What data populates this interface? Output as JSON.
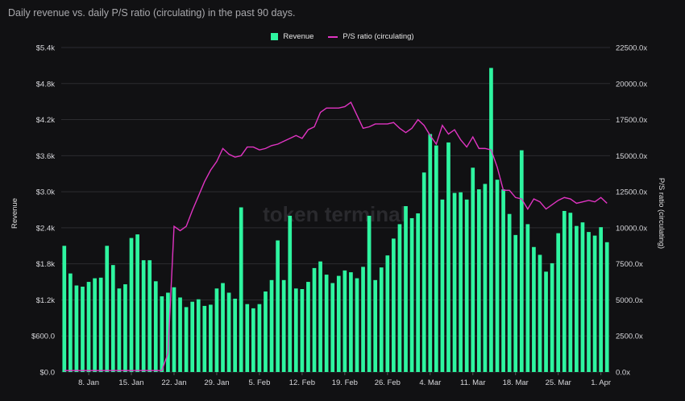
{
  "title": "Daily revenue vs. daily P/S ratio (circulating) in the past 90 days.",
  "watermark": "token terminal",
  "colors": {
    "revenue": "#2ef5a0",
    "ps_ratio": "#e034c2",
    "grid": "#2c2c30",
    "background": "#111113"
  },
  "chart_data": {
    "type": "bar",
    "legend": [
      "Revenue",
      "P/S ratio (circulating)"
    ],
    "legend_position": "top-center",
    "grid": true,
    "y_left_label": "Revenue",
    "y_right_label": "P/S ratio (circulating)",
    "y_left_ticks": [
      "$0.0",
      "$600.0",
      "$1.2k",
      "$1.8k",
      "$2.4k",
      "$3.0k",
      "$3.6k",
      "$4.2k",
      "$4.8k",
      "$5.4k"
    ],
    "y_right_ticks": [
      "0.0x",
      "2500.0x",
      "5000.0x",
      "7500.0x",
      "10000.0x",
      "12500.0x",
      "15000.0x",
      "17500.0x",
      "20000.0x",
      "22500.0x"
    ],
    "y_left_range": [
      0,
      5400
    ],
    "y_right_range": [
      0,
      22500
    ],
    "x_tick_labels": [
      {
        "label": "8. Jan",
        "index": 4
      },
      {
        "label": "15. Jan",
        "index": 11
      },
      {
        "label": "22. Jan",
        "index": 18
      },
      {
        "label": "29. Jan",
        "index": 25
      },
      {
        "label": "5. Feb",
        "index": 32
      },
      {
        "label": "12. Feb",
        "index": 39
      },
      {
        "label": "19. Feb",
        "index": 46
      },
      {
        "label": "26. Feb",
        "index": 53
      },
      {
        "label": "4. Mar",
        "index": 60
      },
      {
        "label": "11. Mar",
        "index": 67
      },
      {
        "label": "18. Mar",
        "index": 74
      },
      {
        "label": "25. Mar",
        "index": 81
      },
      {
        "label": "1. Apr",
        "index": 88
      }
    ],
    "series": [
      {
        "name": "Revenue",
        "type": "bar",
        "axis": "left",
        "values": [
          2100,
          1640,
          1440,
          1420,
          1500,
          1560,
          1570,
          2100,
          1780,
          1390,
          1460,
          2230,
          2290,
          1860,
          1860,
          1510,
          1260,
          1320,
          1410,
          1240,
          1080,
          1170,
          1210,
          1100,
          1120,
          1390,
          1480,
          1320,
          1220,
          2740,
          1130,
          1060,
          1130,
          1340,
          1530,
          2190,
          1530,
          2600,
          1390,
          1380,
          1500,
          1730,
          1840,
          1620,
          1480,
          1600,
          1690,
          1660,
          1560,
          1750,
          2600,
          1530,
          1740,
          1940,
          2220,
          2460,
          2760,
          2560,
          2640,
          3320,
          3960,
          3770,
          2870,
          3820,
          2980,
          2990,
          2870,
          3400,
          3040,
          3130,
          5060,
          3200,
          3040,
          2630,
          2280,
          3690,
          2460,
          2080,
          1950,
          1670,
          1810,
          2310,
          2680,
          2650,
          2430,
          2490,
          2330,
          2270,
          2410,
          2160
        ]
      },
      {
        "name": "P/S ratio (circulating)",
        "type": "line",
        "axis": "right",
        "values": [
          100,
          100,
          100,
          100,
          100,
          100,
          100,
          100,
          100,
          100,
          100,
          100,
          100,
          100,
          100,
          100,
          100,
          1300,
          10100,
          9800,
          10100,
          11200,
          12200,
          13200,
          14000,
          14600,
          15500,
          15100,
          14900,
          15000,
          15600,
          15600,
          15400,
          15500,
          15700,
          15800,
          16000,
          16200,
          16400,
          16200,
          16800,
          17000,
          18000,
          18300,
          18300,
          18300,
          18400,
          18700,
          17800,
          16900,
          17000,
          17200,
          17200,
          17200,
          17300,
          16900,
          16600,
          16900,
          17500,
          17100,
          16400,
          15800,
          17100,
          16500,
          16800,
          16100,
          15600,
          16300,
          15500,
          15500,
          15400,
          14200,
          12600,
          12600,
          12100,
          12000,
          11300,
          12000,
          11800,
          11300,
          11600,
          11900,
          12100,
          12000,
          11700,
          11800,
          11900,
          11800,
          12100,
          11700
        ]
      }
    ]
  }
}
